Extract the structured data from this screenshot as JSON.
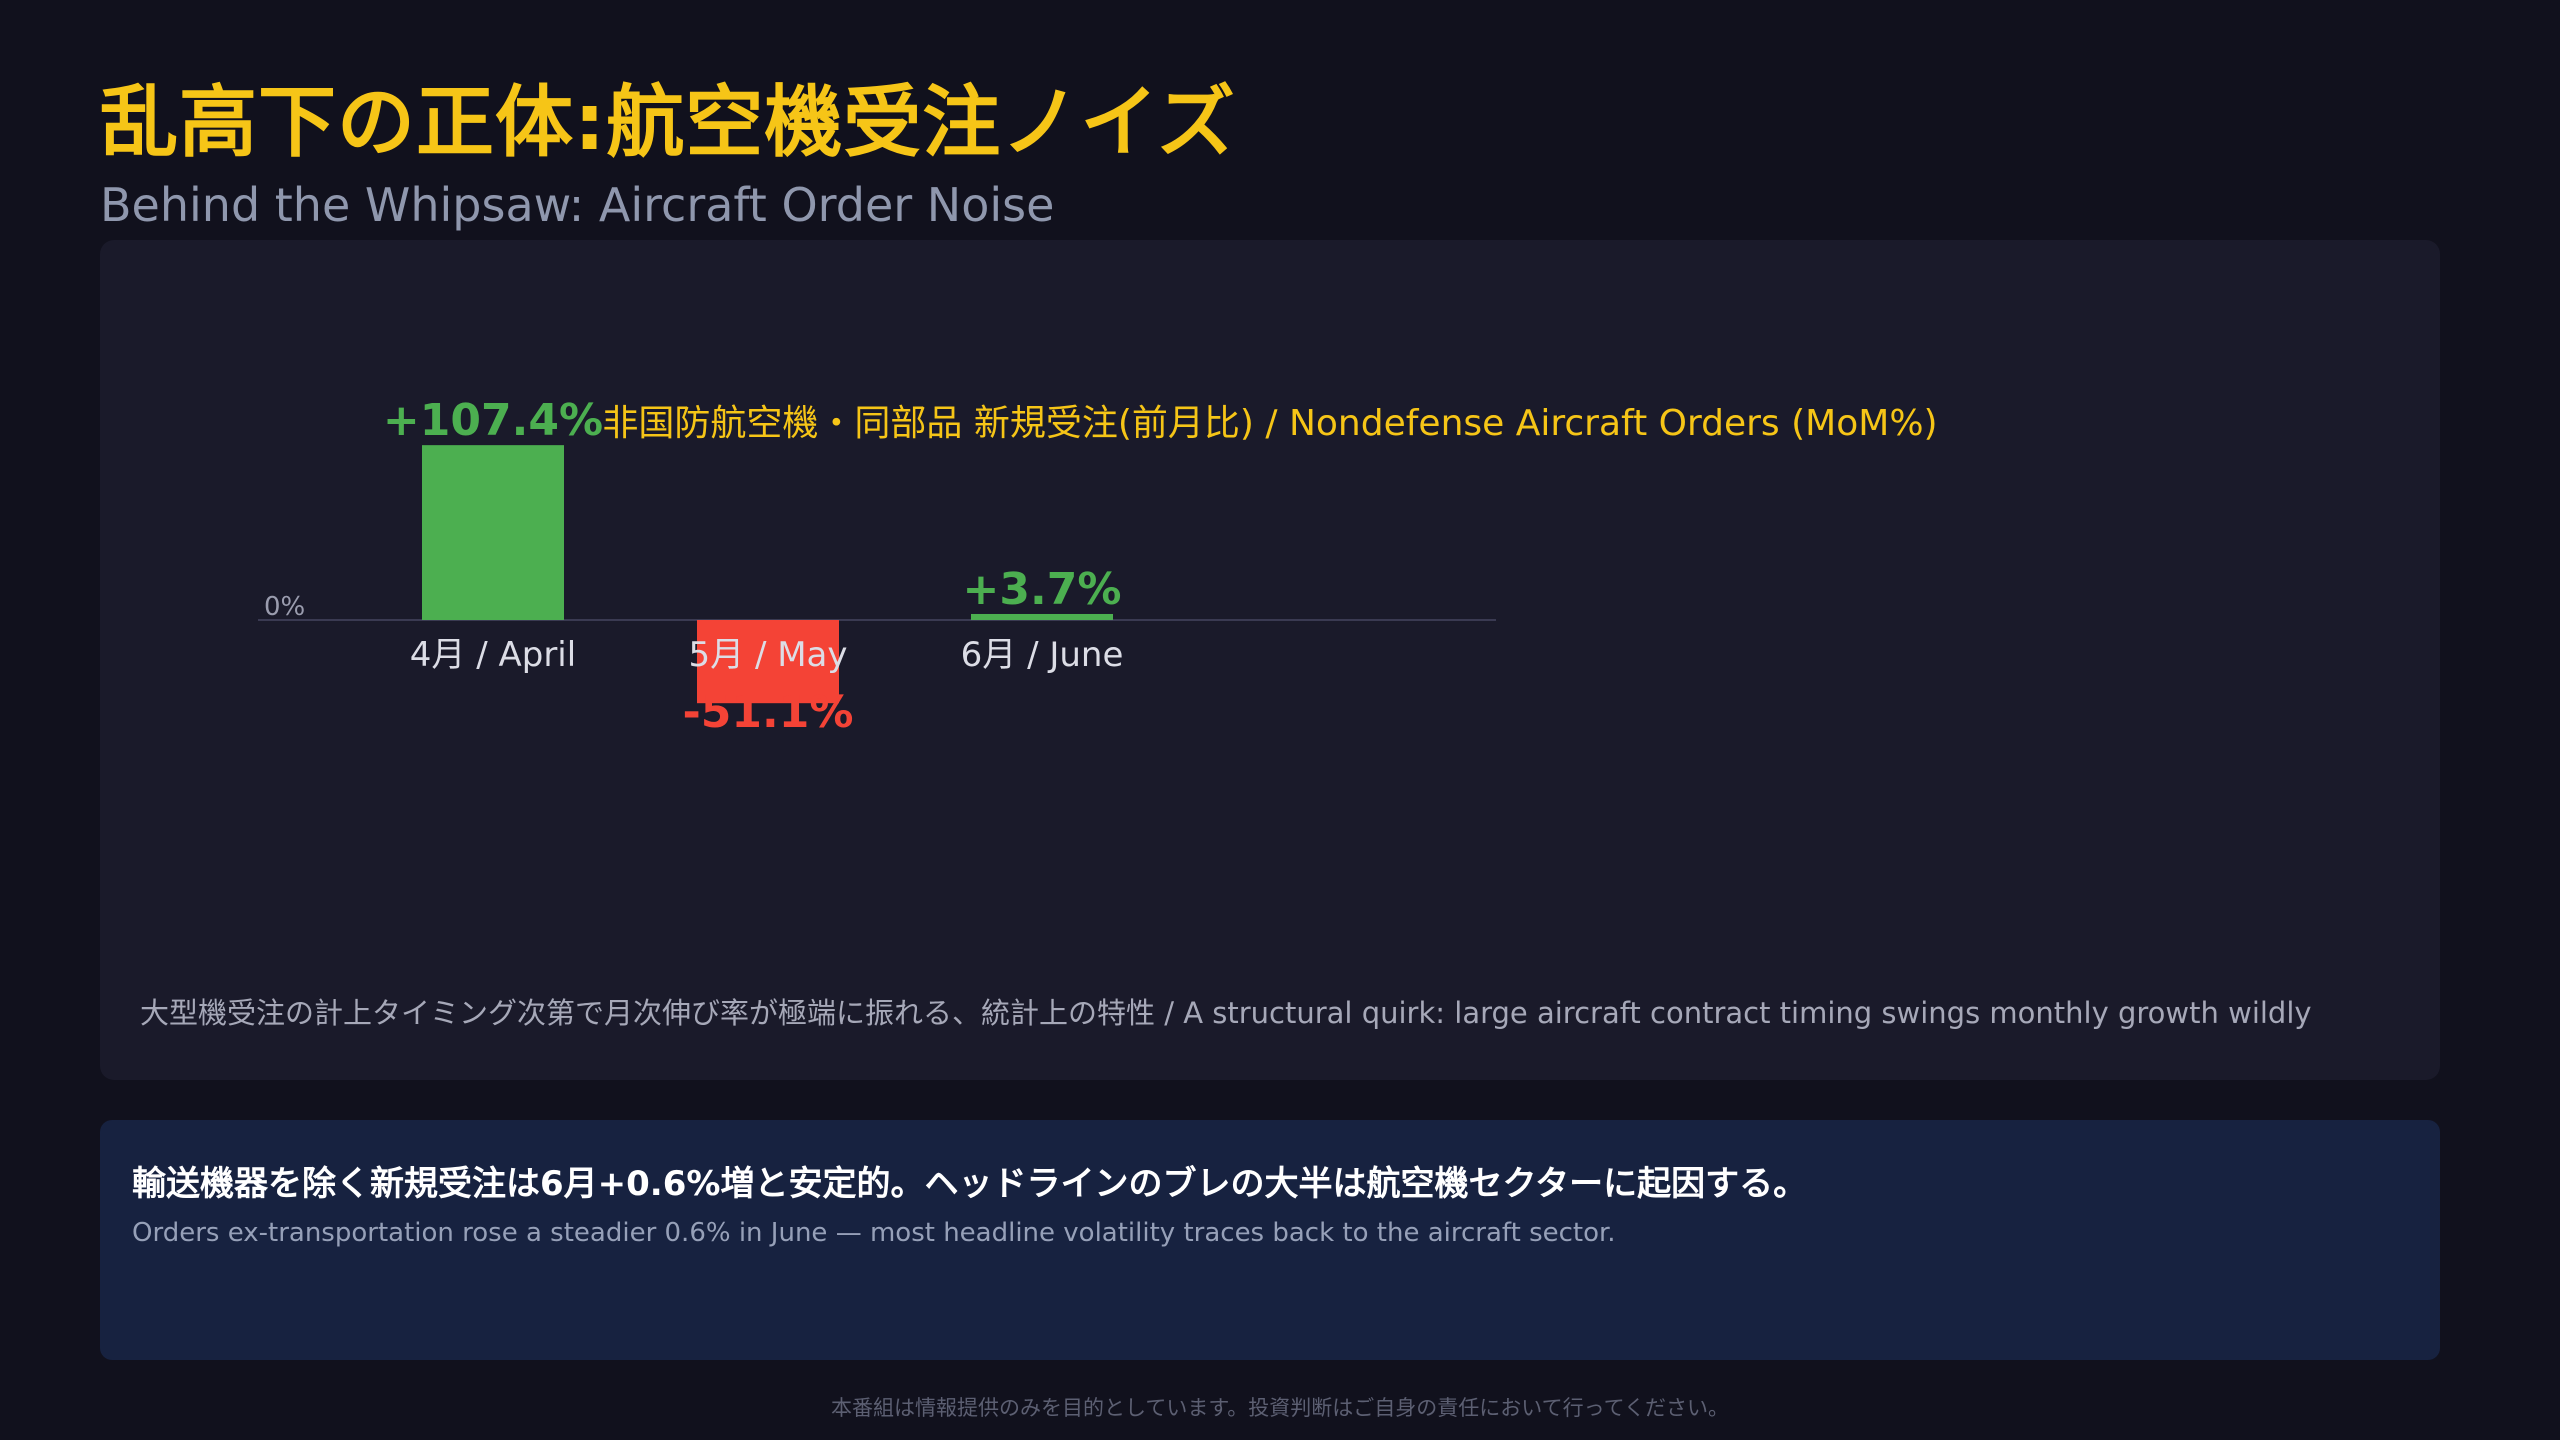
{
  "page": {
    "title": "乱高下の正体:航空機受注ノイズ",
    "subtitle": "Behind the Whipsaw: Aircraft Order Noise",
    "disclaimer": "本番組は情報提供のみを目的としています。投資判断はご自身の責任において行ってください。"
  },
  "chart_data": {
    "type": "bar",
    "title": "非国防航空機・同部品 新規受注(前月比) / Nondefense Aircraft Orders (MoM%)",
    "categories": [
      "4月 / April",
      "5月 / May",
      "6月 / June"
    ],
    "values": [
      107.4,
      -51.1,
      3.7
    ],
    "value_labels": [
      "+107.4%",
      "-51.1%",
      "+3.7%"
    ],
    "zero_label": "0%",
    "ylim": [
      -51.1,
      107.4
    ],
    "grid": false,
    "colors": {
      "positive": "#4caf50",
      "negative": "#f44336",
      "title": "#f6c517",
      "baseline": "#3a3a52"
    },
    "note": "大型機受注の計上タイミング次第で月次伸び率が極端に振れる、統計上の特性 / A structural quirk: large aircraft contract timing swings monthly growth wildly"
  },
  "info": {
    "headline": "輸送機器を除く新規受注は6月+0.6%増と安定的。ヘッドラインのブレの大半は航空機セクターに起因する。",
    "subtext": "Orders ex-transportation rose a steadier 0.6% in June — most headline volatility traces back to the aircraft sector."
  }
}
